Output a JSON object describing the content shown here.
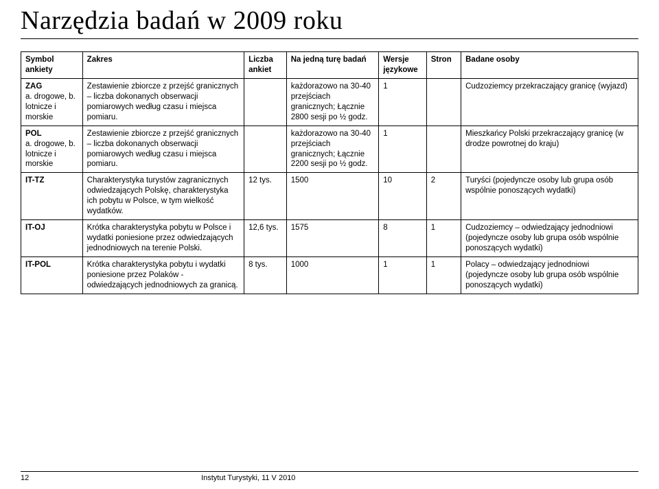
{
  "title": "Narzędzia badań w 2009 roku",
  "columns": {
    "c0": "Symbol ankiety",
    "c1": "Zakres",
    "c2": "Liczba ankiet",
    "c3": "Na jedną turę badań",
    "c4": "Wersje językowe",
    "c5": "Stron",
    "c6": "Badane osoby"
  },
  "rows": [
    {
      "sym_main": "ZAG",
      "sym_sub": "a. drogowe, b. lotnicze i morskie",
      "zak": "Zestawienie zbiorcze z przejść granicznych – liczba dokonanych obserwacji pomiarowych według czasu i miejsca pomiaru.",
      "lic": "",
      "na": "każdorazowo na 30-40 przejściach granicznych; Łącznie 2800 sesji po ½ godz.",
      "wer": "1",
      "str": "",
      "bad": "Cudzoziemcy przekraczający granicę (wyjazd)"
    },
    {
      "sym_main": "POL",
      "sym_sub": "a. drogowe, b. lotnicze i morskie",
      "zak": "Zestawienie zbiorcze z przejść granicznych – liczba dokonanych obserwacji pomiarowych według czasu i miejsca pomiaru.",
      "lic": "",
      "na": "każdorazowo na 30-40 przejściach granicznych; Łącznie 2200 sesji po ½ godz.",
      "wer": "1",
      "str": "",
      "bad": "Mieszkańcy Polski przekraczający granicę (w drodze powrotnej do kraju)"
    },
    {
      "sym_main": "IT-TZ",
      "sym_sub": "",
      "zak": "Charakterystyka  turystów zagranicznych odwiedzających Polskę, charakterystyka ich pobytu w Polsce, w tym wielkość wydatków.",
      "lic": "12 tys.",
      "na": "1500",
      "wer": "10",
      "str": "2",
      "bad": "Turyści (pojedyncze osoby lub grupa osób wspólnie ponoszących wydatki)"
    },
    {
      "sym_main": "IT-OJ",
      "sym_sub": "",
      "zak": "Krótka charakterystyka pobytu w Polsce i wydatki poniesione przez odwiedzających jednodniowych na terenie Polski.",
      "lic": "12,6 tys.",
      "na": "1575",
      "wer": "8",
      "str": "1",
      "bad": "Cudzoziemcy – odwiedzający jednodniowi (pojedyncze osoby lub grupa osób wspólnie ponoszących wydatki)"
    },
    {
      "sym_main": "IT-POL",
      "sym_sub": "",
      "zak": "Krótka charakterystyka pobytu i wydatki poniesione przez Polaków - odwiedzających jednodniowych za granicą.",
      "lic": "8 tys.",
      "na": "1000",
      "wer": "1",
      "str": "1",
      "bad": "Polacy – odwiedzający jednodniowi (pojedyncze osoby lub grupa osób wspólnie ponoszących wydatki)"
    }
  ],
  "footer": {
    "page": "12",
    "inst": "Instytut Turystyki, 11 V 2010"
  }
}
